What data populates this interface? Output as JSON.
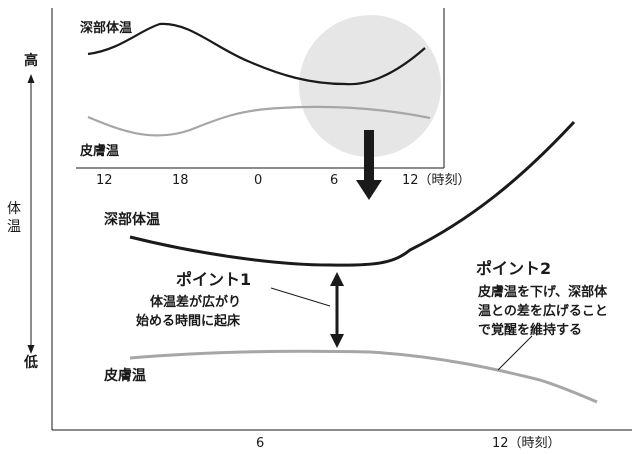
{
  "y_axis": {
    "high": "高",
    "low": "低",
    "title": "体温"
  },
  "inset": {
    "core_label": "深部体温",
    "skin_label": "皮膚温",
    "ticks": [
      "12",
      "18",
      "0",
      "6",
      "12（時刻）"
    ]
  },
  "main": {
    "core_label": "深部体温",
    "skin_label": "皮膚温",
    "ticks": [
      "6",
      "12（時刻）"
    ]
  },
  "point1": {
    "title": "ポイント1",
    "lines": [
      "体温差が広がり",
      "始める時間に起床"
    ]
  },
  "point2": {
    "title": "ポイント2",
    "lines": [
      "皮膚温を下げ、深部体",
      "温との差を広げること",
      "で覚醒を維持する"
    ]
  },
  "colors": {
    "core_curve": "#1a1a1a",
    "skin_curve": "#a6a6a6",
    "highlight": "#e6e6e6"
  }
}
